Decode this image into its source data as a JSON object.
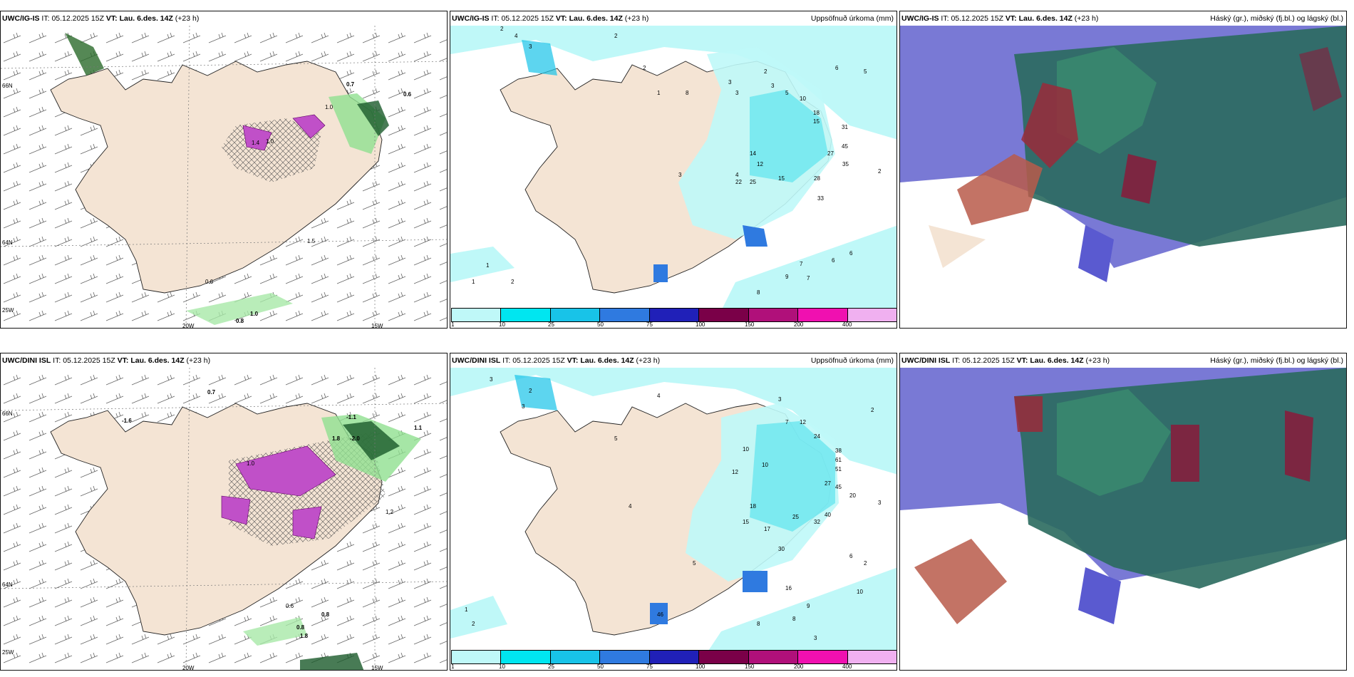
{
  "panels": [
    {
      "model": "UWC/IG-IS",
      "it": "05.12.2025 15Z",
      "vt": "Lau. 6.des. 14Z",
      "lead": "(+23 h)",
      "right": ""
    },
    {
      "model": "UWC/IG-IS",
      "it": "05.12.2025 15Z",
      "vt": "Lau. 6.des. 14Z",
      "lead": "(+23 h)",
      "right": "Uppsöfnuð úrkoma (mm)"
    },
    {
      "model": "UWC/IG-IS",
      "it": "05.12.2025 15Z",
      "vt": "Lau. 6.des. 14Z",
      "lead": "(+23 h)",
      "right": "Háský (gr.), miðský (fj.bl.) og lágský (bl.)"
    },
    {
      "model": "UWC/DINI ISL",
      "it": "05.12.2025 15Z",
      "vt": "Lau. 6.des. 14Z",
      "lead": "(+23 h)",
      "right": ""
    },
    {
      "model": "UWC/DINI ISL",
      "it": "05.12.2025 15Z",
      "vt": "Lau. 6.des. 14Z",
      "lead": "(+23 h)",
      "right": "Uppsöfnuð úrkoma (mm)"
    },
    {
      "model": "UWC/DINI ISL",
      "it": "05.12.2025 15Z",
      "vt": "Lau. 6.des. 14Z",
      "lead": "(+23 h)",
      "right": "Háský (gr.), miðský (fj.bl.) og lágský (bl.)"
    }
  ],
  "labels": {
    "it": "IT:",
    "vt": "VT:"
  },
  "axes": {
    "lat66": "66N",
    "lat64": "64N",
    "lat63": "63N",
    "lon20": "20W",
    "lon15": "15W",
    "lon25": "25W"
  },
  "colorbar": {
    "ticks": [
      "1",
      "10",
      "25",
      "50",
      "75",
      "100",
      "150",
      "200",
      "400"
    ],
    "colors": [
      "#bff8f8",
      "#00e6f0",
      "#18c3e8",
      "#2f7ae0",
      "#2020b8",
      "#7a0048",
      "#b0107a",
      "#f010b0",
      "#f0b0f0"
    ]
  },
  "precip_top": [
    "2",
    "4",
    "3",
    "2",
    "2",
    "8",
    "1",
    "3",
    "3",
    "2",
    "3",
    "5",
    "10",
    "18",
    "15",
    "31",
    "45",
    "27",
    "35",
    "12",
    "22",
    "25",
    "33",
    "5",
    "6",
    "1",
    "1",
    "2",
    "15",
    "14",
    "2",
    "3",
    "4",
    "28",
    "9",
    "7",
    "6",
    "6",
    "8",
    "7"
  ],
  "precip_bottom": [
    "3",
    "2",
    "3",
    "4",
    "3",
    "2",
    "12",
    "7",
    "24",
    "38",
    "61",
    "51",
    "45",
    "20",
    "30",
    "15",
    "17",
    "27",
    "25",
    "32",
    "40",
    "10",
    "6",
    "9",
    "8",
    "1",
    "2",
    "3",
    "12",
    "10",
    "4",
    "5",
    "8",
    "2",
    "10",
    "16",
    "46",
    "18",
    "5",
    "3"
  ],
  "ice_top": [
    "0.7",
    "0.6",
    "1.0",
    "0.8",
    "1.4",
    "1.0",
    "0.6",
    "1.0",
    "1.5"
  ],
  "ice_bottom": [
    "0.7",
    "-1.1",
    "1.8",
    "-2.0",
    "1.1",
    "-1.6",
    "1.0",
    "0.6",
    "1.2",
    "0.8",
    "0.8",
    "1.8"
  ],
  "land_color": "#f4e4d4"
}
